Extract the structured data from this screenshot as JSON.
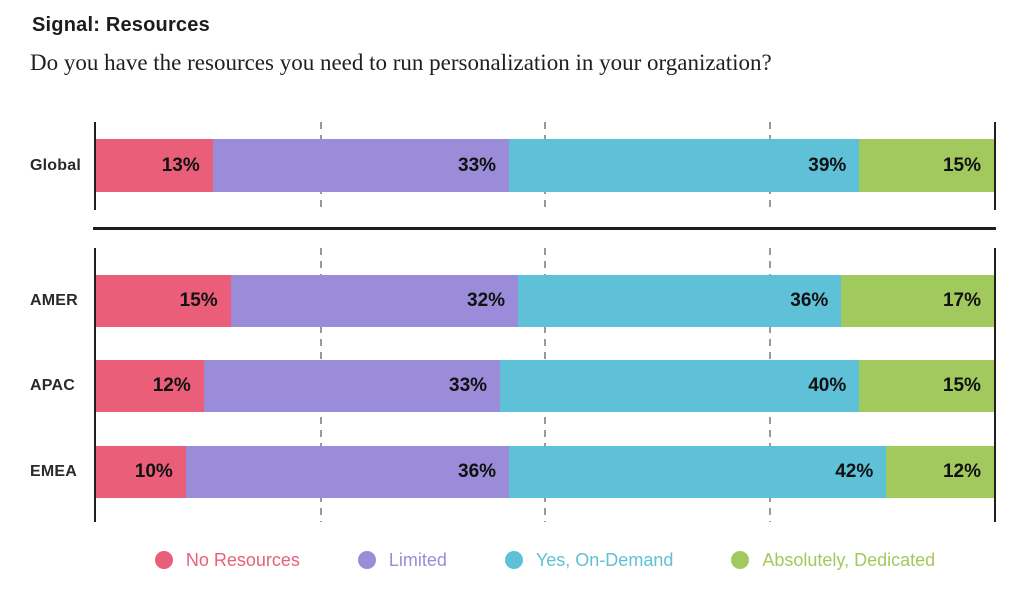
{
  "header": {
    "title": "Signal: Resources",
    "subtitle": "Do you have the resources you need to run personalization in your organization?"
  },
  "chart_data": {
    "type": "bar",
    "variant": "horizontal-stacked",
    "unit": "%",
    "xlim": [
      0,
      100
    ],
    "gridlines_at_percent": [
      25,
      50,
      75
    ],
    "grid_style": "dashed-vertical",
    "legend_position": "bottom",
    "categories": [
      "Global",
      "AMER",
      "APAC",
      "EMEA"
    ],
    "panels": [
      {
        "name": "global",
        "category_indexes": [
          0
        ]
      },
      {
        "name": "regions",
        "category_indexes": [
          1,
          2,
          3
        ]
      }
    ],
    "series": [
      {
        "name": "No Resources",
        "color": "#EA5E7A",
        "values": [
          13,
          15,
          12,
          10
        ]
      },
      {
        "name": "Limited",
        "color": "#9A8CD8",
        "values": [
          33,
          32,
          33,
          36
        ]
      },
      {
        "name": "Yes, On-Demand",
        "color": "#5EC1D8",
        "values": [
          39,
          36,
          40,
          42
        ]
      },
      {
        "name": "Absolutely, Dedicated",
        "color": "#A2C95E",
        "values": [
          15,
          17,
          15,
          12
        ]
      }
    ],
    "value_label_format": "{value}%",
    "axis_color": "#231f20",
    "gridline_color": "#999999"
  }
}
